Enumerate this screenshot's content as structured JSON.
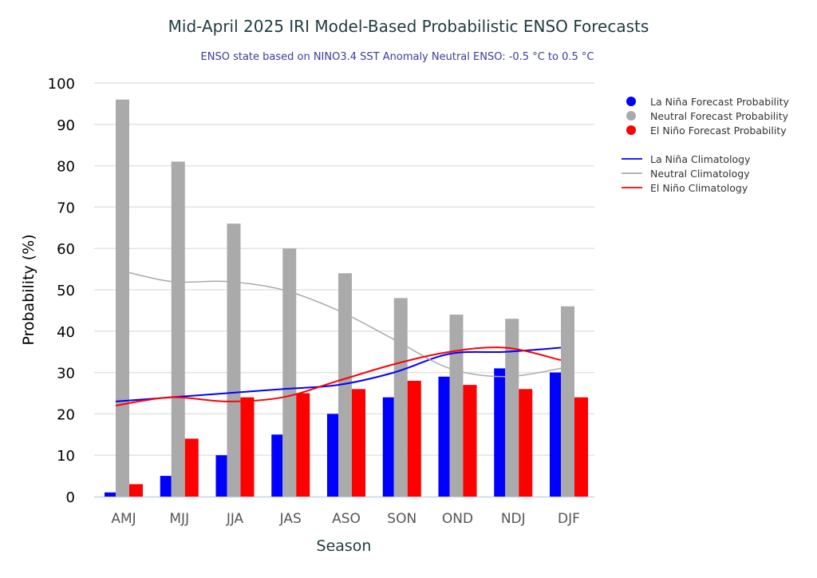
{
  "chart_data": {
    "type": "bar",
    "title": "Mid-April 2025 IRI Model-Based Probabilistic ENSO Forecasts",
    "subtitle": "ENSO state based on NINO3.4 SST Anomaly Neutral ENSO: -0.5 °C to 0.5 °C",
    "xlabel": "Season",
    "ylabel": "Probability (%)",
    "ylim": [
      0,
      100
    ],
    "yticks": [
      0,
      10,
      20,
      30,
      40,
      50,
      60,
      70,
      80,
      90,
      100
    ],
    "grid": true,
    "legend_position": "right",
    "categories": [
      "AMJ",
      "MJJ",
      "JJA",
      "JAS",
      "ASO",
      "SON",
      "OND",
      "NDJ",
      "DJF"
    ],
    "series": [
      {
        "name": "La Niña Forecast Probability",
        "kind": "bar",
        "color": "#0000ff",
        "values": [
          1,
          5,
          10,
          15,
          20,
          24,
          29,
          31,
          30
        ]
      },
      {
        "name": "Neutral Forecast Probability",
        "kind": "bar",
        "color": "#aaaaaa",
        "values": [
          96,
          81,
          66,
          60,
          54,
          48,
          44,
          43,
          46
        ]
      },
      {
        "name": "El Niño Forecast Probability",
        "kind": "bar",
        "color": "#ff0000",
        "values": [
          3,
          14,
          24,
          25,
          26,
          28,
          27,
          26,
          24
        ]
      },
      {
        "name": "La Niña Climatology",
        "kind": "line",
        "color": "#0000ff",
        "values": [
          23,
          24,
          25,
          26,
          27,
          30,
          34.5,
          35,
          36
        ]
      },
      {
        "name": "Neutral Climatology",
        "kind": "line",
        "color": "#aaaaaa",
        "values": [
          55,
          52,
          52,
          50,
          45,
          38,
          31,
          29,
          31
        ]
      },
      {
        "name": "El Niño Climatology",
        "kind": "line",
        "color": "#ff0000",
        "values": [
          22,
          24,
          23,
          24,
          28,
          32,
          35,
          36,
          33
        ]
      }
    ]
  }
}
